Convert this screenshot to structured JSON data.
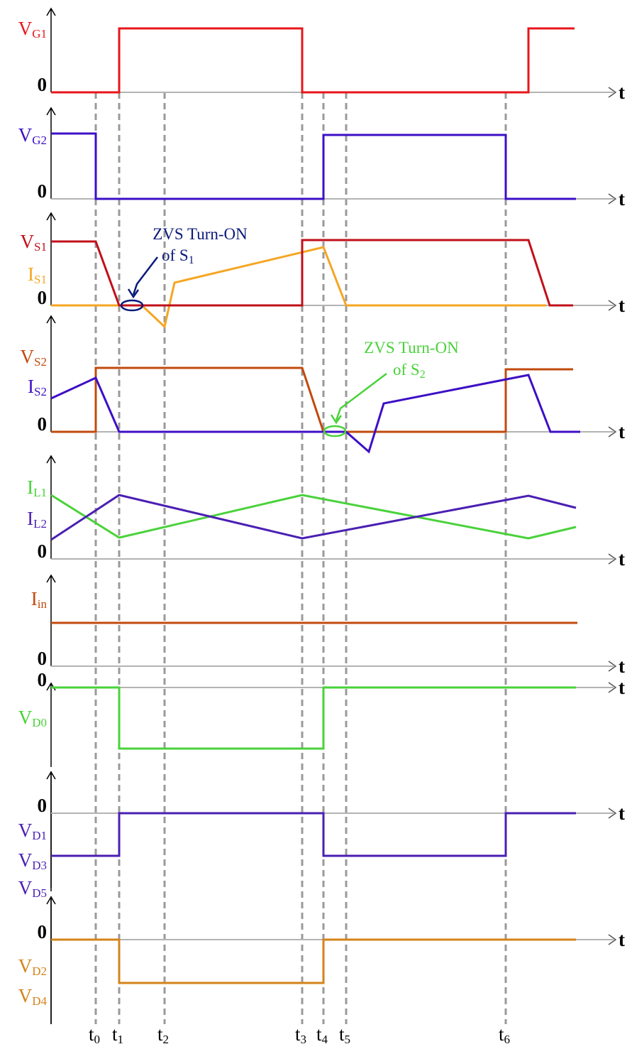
{
  "colors": {
    "red": "#e8161b",
    "blue": "#3d0fc6",
    "dark_red": "#c0101a",
    "orange": "#f5a623",
    "brown": "#c24a0e",
    "green": "#49d23a",
    "purple": "#4a1fb3",
    "gold": "#d4831a",
    "navy": "#0a1a7a",
    "axis": "#b3b3b3",
    "dash": "#9a9a9a"
  },
  "time_axis_label": "t",
  "zero_label": "0",
  "time_markers": [
    {
      "main": "t",
      "sub": "0"
    },
    {
      "main": "t",
      "sub": "1"
    },
    {
      "main": "t",
      "sub": "2"
    },
    {
      "main": "t",
      "sub": "3"
    },
    {
      "main": "t",
      "sub": "4"
    },
    {
      "main": "t",
      "sub": "5"
    },
    {
      "main": "t",
      "sub": "6"
    }
  ],
  "panels": [
    {
      "id": "vg1",
      "labels": [
        {
          "main": "V",
          "sub": "G1",
          "color": "red"
        }
      ]
    },
    {
      "id": "vg2",
      "labels": [
        {
          "main": "V",
          "sub": "G2",
          "color": "blue"
        }
      ]
    },
    {
      "id": "s1",
      "labels": [
        {
          "main": "V",
          "sub": "S1",
          "color": "dark_red"
        },
        {
          "main": "I",
          "sub": "S1",
          "color": "orange"
        }
      ]
    },
    {
      "id": "s2",
      "labels": [
        {
          "main": "V",
          "sub": "S2",
          "color": "brown"
        },
        {
          "main": "I",
          "sub": "S2",
          "color": "blue"
        }
      ]
    },
    {
      "id": "il",
      "labels": [
        {
          "main": "I",
          "sub": "L1",
          "color": "green"
        },
        {
          "main": "I",
          "sub": "L2",
          "color": "purple"
        }
      ]
    },
    {
      "id": "iin",
      "labels": [
        {
          "main": "I",
          "sub": "in",
          "color": "brown"
        }
      ]
    },
    {
      "id": "vd0",
      "labels": [
        {
          "main": "V",
          "sub": "D0",
          "color": "green"
        }
      ]
    },
    {
      "id": "vd135",
      "labels": [
        {
          "main": "V",
          "sub": "D1",
          "color": "purple"
        },
        {
          "main": "V",
          "sub": "D3",
          "color": "purple"
        },
        {
          "main": "V",
          "sub": "D5",
          "color": "purple"
        }
      ]
    },
    {
      "id": "vd24",
      "labels": [
        {
          "main": "V",
          "sub": "D2",
          "color": "gold"
        },
        {
          "main": "V",
          "sub": "D4",
          "color": "gold"
        }
      ]
    }
  ],
  "annotations": [
    {
      "id": "zvs1",
      "line1": "ZVS Turn-ON",
      "line2_main": "of S",
      "line2_sub": "1",
      "color": "navy"
    },
    {
      "id": "zvs2",
      "line1": "ZVS Turn-ON",
      "line2_main": "of S",
      "line2_sub": "2",
      "color": "green"
    }
  ]
}
